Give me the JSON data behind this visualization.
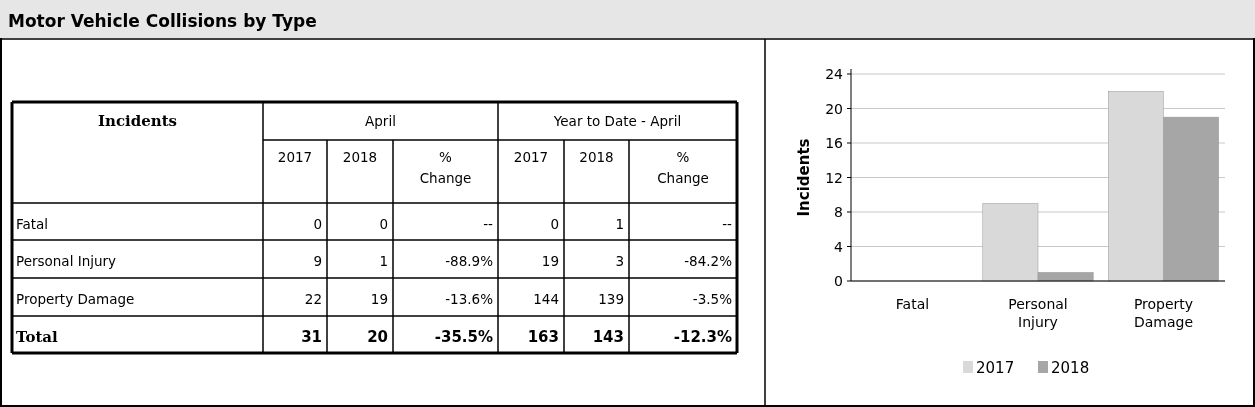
{
  "chart_data": [
    {
      "type": "other",
      "title": "Motor Vehicle Collisions by Type",
      "annotations": [
        "Incidents",
        "April",
        "Year to Date - April",
        "2017",
        "2018",
        "% Change",
        "2017",
        "2018",
        "% Change",
        "Fatal",
        "0",
        "0",
        "--",
        "0",
        "1",
        "--",
        "Personal Injury",
        "9",
        "1",
        "-88.9%",
        "19",
        "3",
        "-84.2%",
        "Property Damage",
        "22",
        "19",
        "-13.6%",
        "144",
        "139",
        "-3.5%",
        "Total",
        "31",
        "20",
        "-35.5%",
        "163",
        "143",
        "-12.3%"
      ]
    },
    {
      "type": "bar",
      "categories": [
        "Fatal",
        "Personal Injury",
        "Property Damage"
      ],
      "ylabel": "Incidents",
      "ylim": [
        0,
        24
      ],
      "yticks": [
        0,
        4,
        8,
        12,
        16,
        20,
        24
      ],
      "grid": "y",
      "legend": "bottom",
      "series": [
        {
          "name": "2017",
          "color": "#d9d9d9",
          "values": [
            0,
            9,
            22
          ]
        },
        {
          "name": "2018",
          "color": "#a6a6a6",
          "values": [
            0,
            1,
            19
          ]
        }
      ]
    }
  ]
}
